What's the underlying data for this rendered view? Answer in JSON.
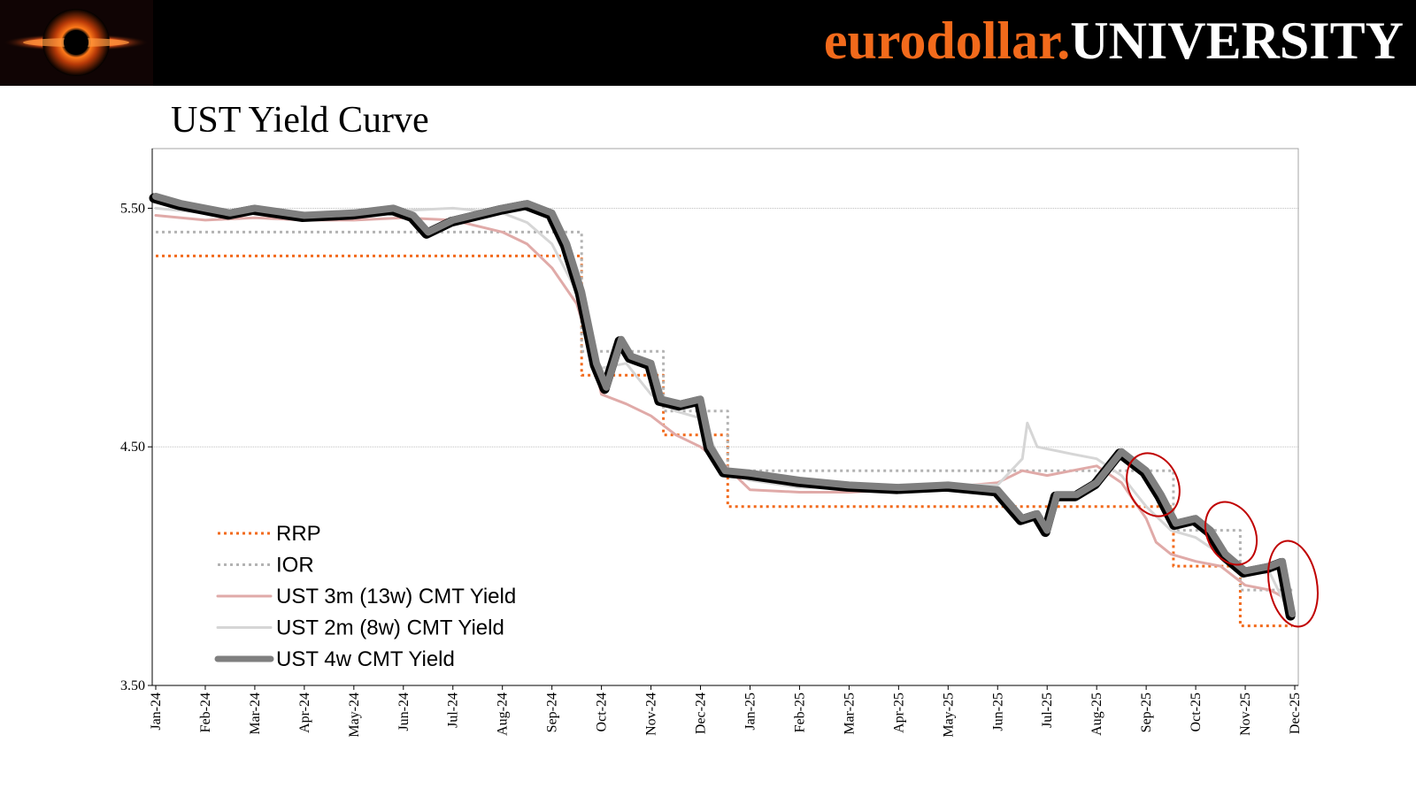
{
  "header": {
    "brand_part1": "eurodollar.",
    "brand_part2": "UNIVERSITY",
    "brand_color": "#f26a1b",
    "logo_icon": "black-hole-logo-icon"
  },
  "chart_data": {
    "type": "line",
    "title": "UST Yield Curve",
    "xlabel": "",
    "ylabel": "",
    "ylim": [
      3.5,
      5.75
    ],
    "yticks": [
      "5.50",
      "4.50",
      "3.50"
    ],
    "x_tick_labels": [
      "Jan-24",
      "Feb-24",
      "Mar-24",
      "Apr-24",
      "May-24",
      "Jun-24",
      "Jul-24",
      "Aug-24",
      "Sep-24",
      "Oct-24",
      "Nov-24",
      "Dec-24",
      "Jan-25",
      "Feb-25",
      "Mar-25",
      "Apr-25",
      "May-25",
      "Jun-25",
      "Jul-25",
      "Aug-25",
      "Sep-25",
      "Oct-25",
      "Nov-25",
      "Dec-25"
    ],
    "grid": "horizontal",
    "legend_position": "bottom-left",
    "series": [
      {
        "name": "RRP",
        "color": "#f26a1b",
        "style": "dotted",
        "points": [
          [
            0,
            5.3
          ],
          [
            8.6,
            5.3
          ],
          [
            8.6,
            4.8
          ],
          [
            10.25,
            4.8
          ],
          [
            10.25,
            4.55
          ],
          [
            11.55,
            4.55
          ],
          [
            11.55,
            4.25
          ],
          [
            19.5,
            4.25
          ],
          [
            20.55,
            4.25
          ],
          [
            20.55,
            4.0
          ],
          [
            21.9,
            4.0
          ],
          [
            21.9,
            3.75
          ],
          [
            22.95,
            3.75
          ]
        ]
      },
      {
        "name": "IOR",
        "color": "#b3b3b3",
        "style": "dotted",
        "points": [
          [
            0,
            5.4
          ],
          [
            8.6,
            5.4
          ],
          [
            8.6,
            4.9
          ],
          [
            10.25,
            4.9
          ],
          [
            10.25,
            4.65
          ],
          [
            11.55,
            4.65
          ],
          [
            11.55,
            4.4
          ],
          [
            19.5,
            4.4
          ],
          [
            20.55,
            4.4
          ],
          [
            20.55,
            4.15
          ],
          [
            21.9,
            4.15
          ],
          [
            21.9,
            3.9
          ],
          [
            22.95,
            3.9
          ]
        ]
      },
      {
        "name": "UST 3m (13w) CMT Yield",
        "color": "#e0aaa8",
        "style": "solid",
        "points": [
          [
            0,
            5.47
          ],
          [
            1,
            5.45
          ],
          [
            2,
            5.46
          ],
          [
            3,
            5.45
          ],
          [
            4,
            5.45
          ],
          [
            5,
            5.46
          ],
          [
            6,
            5.45
          ],
          [
            7,
            5.4
          ],
          [
            7.5,
            5.35
          ],
          [
            8,
            5.25
          ],
          [
            8.5,
            5.1
          ],
          [
            8.8,
            4.9
          ],
          [
            9,
            4.72
          ],
          [
            9.5,
            4.68
          ],
          [
            10,
            4.63
          ],
          [
            10.5,
            4.55
          ],
          [
            11,
            4.5
          ],
          [
            11.5,
            4.42
          ],
          [
            12,
            4.32
          ],
          [
            13,
            4.31
          ],
          [
            14,
            4.31
          ],
          [
            15,
            4.32
          ],
          [
            16,
            4.33
          ],
          [
            17,
            4.35
          ],
          [
            17.5,
            4.4
          ],
          [
            18,
            4.38
          ],
          [
            18.5,
            4.4
          ],
          [
            19,
            4.42
          ],
          [
            19.5,
            4.35
          ],
          [
            20,
            4.2
          ],
          [
            20.2,
            4.1
          ],
          [
            20.5,
            4.05
          ],
          [
            21,
            4.02
          ],
          [
            21.5,
            4.0
          ],
          [
            22,
            3.92
          ],
          [
            22.5,
            3.9
          ],
          [
            22.95,
            3.85
          ]
        ]
      },
      {
        "name": "UST 2m (8w) CMT Yield",
        "color": "#d6d6d6",
        "style": "solid",
        "points": [
          [
            0,
            5.5
          ],
          [
            1,
            5.48
          ],
          [
            2,
            5.48
          ],
          [
            3,
            5.48
          ],
          [
            4,
            5.49
          ],
          [
            5,
            5.49
          ],
          [
            6,
            5.5
          ],
          [
            7,
            5.48
          ],
          [
            7.5,
            5.44
          ],
          [
            8,
            5.35
          ],
          [
            8.5,
            5.15
          ],
          [
            8.8,
            4.9
          ],
          [
            9,
            4.83
          ],
          [
            9.5,
            4.85
          ],
          [
            10,
            4.72
          ],
          [
            10.5,
            4.65
          ],
          [
            11,
            4.62
          ],
          [
            11.5,
            4.4
          ],
          [
            12,
            4.36
          ],
          [
            13,
            4.33
          ],
          [
            14,
            4.33
          ],
          [
            15,
            4.34
          ],
          [
            16,
            4.34
          ],
          [
            17,
            4.34
          ],
          [
            17.5,
            4.45
          ],
          [
            17.6,
            4.6
          ],
          [
            17.8,
            4.5
          ],
          [
            18.5,
            4.47
          ],
          [
            19,
            4.45
          ],
          [
            19.5,
            4.38
          ],
          [
            20,
            4.25
          ],
          [
            20.5,
            4.15
          ],
          [
            21,
            4.12
          ],
          [
            21.5,
            4.05
          ],
          [
            22,
            3.98
          ],
          [
            22.5,
            3.97
          ],
          [
            22.95,
            3.78
          ]
        ]
      },
      {
        "name": "UST 4w CMT Yield",
        "color": "#7f7f7f",
        "style": "solid-thick",
        "points": [
          [
            0,
            5.55
          ],
          [
            0.5,
            5.52
          ],
          [
            1,
            5.5
          ],
          [
            1.5,
            5.48
          ],
          [
            2,
            5.5
          ],
          [
            3,
            5.47
          ],
          [
            4,
            5.48
          ],
          [
            4.8,
            5.5
          ],
          [
            5.2,
            5.47
          ],
          [
            5.5,
            5.4
          ],
          [
            6,
            5.45
          ],
          [
            7,
            5.5
          ],
          [
            7.5,
            5.52
          ],
          [
            8,
            5.48
          ],
          [
            8.3,
            5.35
          ],
          [
            8.6,
            5.15
          ],
          [
            8.9,
            4.85
          ],
          [
            9.1,
            4.75
          ],
          [
            9.4,
            4.95
          ],
          [
            9.6,
            4.88
          ],
          [
            10,
            4.85
          ],
          [
            10.2,
            4.7
          ],
          [
            10.6,
            4.68
          ],
          [
            11,
            4.7
          ],
          [
            11.2,
            4.5
          ],
          [
            11.5,
            4.4
          ],
          [
            12,
            4.39
          ],
          [
            13,
            4.36
          ],
          [
            14,
            4.34
          ],
          [
            15,
            4.33
          ],
          [
            16,
            4.34
          ],
          [
            17,
            4.32
          ],
          [
            17.5,
            4.2
          ],
          [
            17.8,
            4.22
          ],
          [
            18,
            4.15
          ],
          [
            18.2,
            4.3
          ],
          [
            18.6,
            4.3
          ],
          [
            19,
            4.35
          ],
          [
            19.5,
            4.48
          ],
          [
            20,
            4.4
          ],
          [
            20.3,
            4.3
          ],
          [
            20.6,
            4.18
          ],
          [
            21,
            4.2
          ],
          [
            21.3,
            4.15
          ],
          [
            21.6,
            4.05
          ],
          [
            22,
            3.98
          ],
          [
            22.5,
            4.0
          ],
          [
            22.75,
            4.02
          ],
          [
            22.95,
            3.8
          ]
        ]
      }
    ],
    "annotations": [
      "ellipse-sep-25",
      "ellipse-oct-25",
      "ellipse-dec-25"
    ],
    "annotation_color": "#c00000"
  }
}
